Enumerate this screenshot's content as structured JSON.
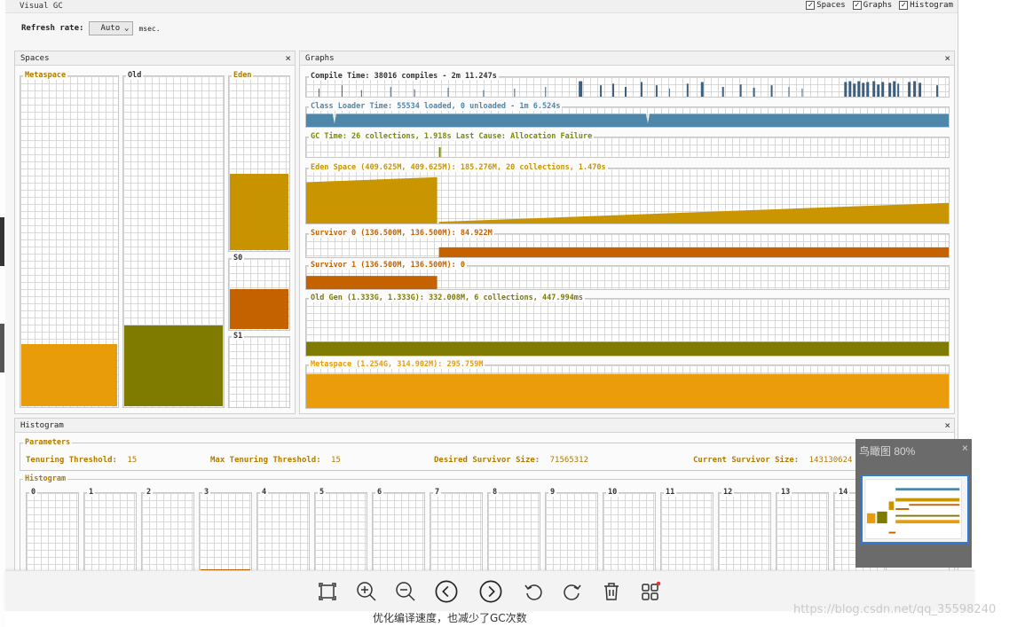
{
  "app": {
    "title": "Visual GC"
  },
  "view_toggles": [
    {
      "label": "Spaces",
      "checked": true
    },
    {
      "label": "Graphs",
      "checked": true
    },
    {
      "label": "Histogram",
      "checked": true
    }
  ],
  "refresh": {
    "label": "Refresh rate:",
    "value": "Auto",
    "unit": "msec."
  },
  "spaces": {
    "title": "Spaces",
    "metaspace": {
      "label": "Metaspace",
      "fill_fraction": 0.19,
      "color": "#e89c0a"
    },
    "old": {
      "label": "Old",
      "fill_fraction": 0.245,
      "color": "#7f7a00"
    },
    "eden": {
      "label": "Eden",
      "fill_fraction": 0.44,
      "color": "#c79400"
    },
    "s0": {
      "label": "S0",
      "fill_fraction": 0.58,
      "color": "#c46200"
    },
    "s1": {
      "label": "S1",
      "fill_fraction": 0.0,
      "color": "#c46200"
    }
  },
  "graphs": {
    "title": "Graphs",
    "compile": {
      "label": "Compile Time: 38016 compiles - 2m 11.247s",
      "color": "#3d5e7e"
    },
    "classloader": {
      "label": "Class Loader Time: 55534 loaded, 0 unloaded - 1m 6.524s",
      "color": "#4f87ab"
    },
    "gc": {
      "label": "GC Time: 26 collections, 1.918s  Last Cause: Allocation Failure",
      "color": "#7f8a00"
    },
    "eden": {
      "label": "Eden Space (409.625M, 409.625M): 185.276M, 20 collections, 1.470s",
      "color": "#c99500"
    },
    "s0": {
      "label": "Survivor 0 (136.500M, 136.500M): 84.922M",
      "color": "#c46200"
    },
    "s1": {
      "label": "Survivor 1 (136.500M, 136.500M): 0",
      "color": "#c46200"
    },
    "old": {
      "label": "Old Gen (1.333G, 1.333G): 332.008M, 6 collections, 447.994ms",
      "color": "#7f7a00"
    },
    "metaspace": {
      "label": "Metaspace (1.254G, 314.902M): 295.759M",
      "color": "#ea9c0a"
    }
  },
  "histogram": {
    "title": "Histogram",
    "parameters_label": "Parameters",
    "params": [
      {
        "label": "Tenuring Threshold:",
        "value": "15"
      },
      {
        "label": "Max Tenuring Threshold:",
        "value": "15"
      },
      {
        "label": "Desired Survivor Size:",
        "value": "71565312"
      },
      {
        "label": "Current Survivor Size:",
        "value": "143130624"
      }
    ],
    "histogram_label": "Histogram",
    "bins": [
      "0",
      "1",
      "2",
      "3",
      "4",
      "5",
      "6",
      "7",
      "8",
      "9",
      "10",
      "11",
      "12",
      "13",
      "14"
    ]
  },
  "overview": {
    "title": "鸟瞰图 80%"
  },
  "caption": "优化编译速度，也减少了GC次数",
  "watermark": "https://blog.csdn.net/qq_35598240",
  "toolbar": [
    {
      "name": "fit-screen-icon"
    },
    {
      "name": "zoom-in-icon"
    },
    {
      "name": "zoom-out-icon"
    },
    {
      "name": "previous-icon"
    },
    {
      "name": "next-icon"
    },
    {
      "name": "rotate-left-icon"
    },
    {
      "name": "rotate-right-icon"
    },
    {
      "name": "delete-icon"
    },
    {
      "name": "more-apps-icon"
    }
  ]
}
